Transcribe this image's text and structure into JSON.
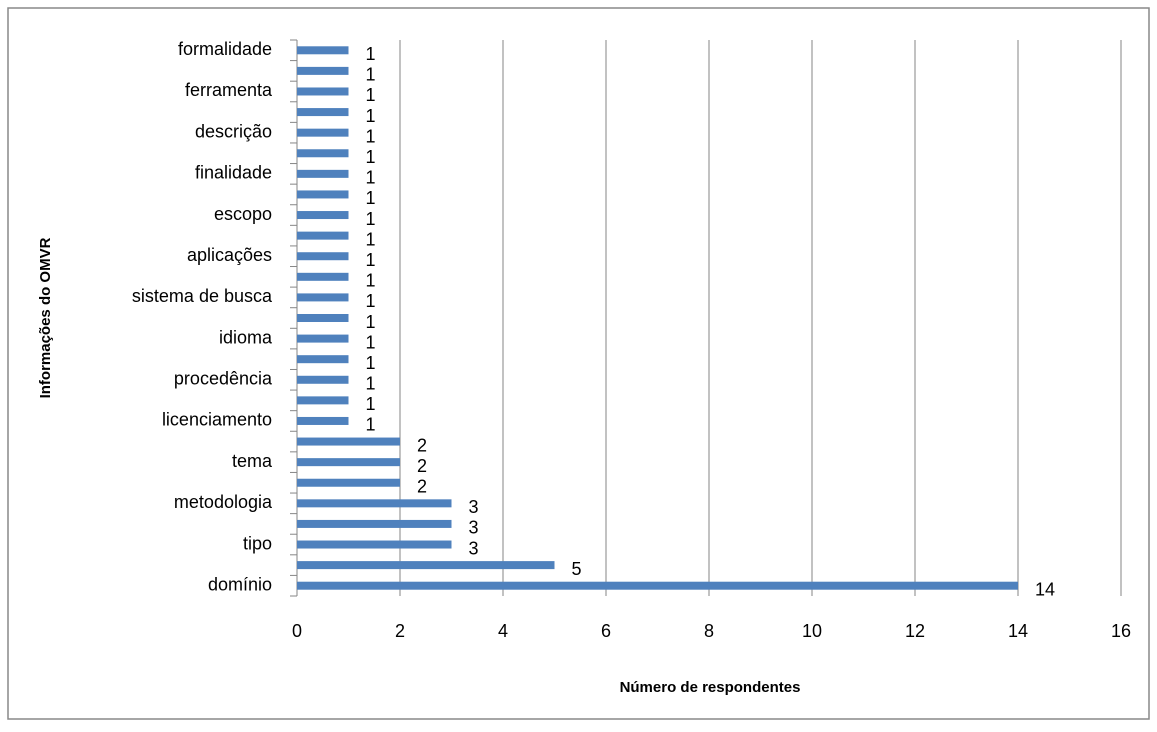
{
  "chart_data": {
    "type": "bar",
    "orientation": "horizontal",
    "xlabel": "Número de respondentes",
    "ylabel": "Informações do OMVR",
    "categories": [
      "domínio",
      null,
      "tipo",
      null,
      "metodologia",
      null,
      "tema",
      null,
      "licenciamento",
      null,
      "procedência",
      null,
      "idioma",
      null,
      "sistema de busca",
      null,
      "aplicações",
      null,
      "escopo",
      null,
      "finalidade",
      null,
      "descrição",
      null,
      "ferramenta",
      null,
      "formalidade"
    ],
    "values": [
      14,
      5,
      3,
      3,
      3,
      2,
      2,
      2,
      1,
      1,
      1,
      1,
      1,
      1,
      1,
      1,
      1,
      1,
      1,
      1,
      1,
      1,
      1,
      1,
      1,
      1,
      1
    ],
    "color": "#4f81bd",
    "xlim": [
      0,
      16
    ],
    "xticks": [
      0,
      2,
      4,
      6,
      8,
      10,
      12,
      14,
      16
    ],
    "grid": true
  }
}
